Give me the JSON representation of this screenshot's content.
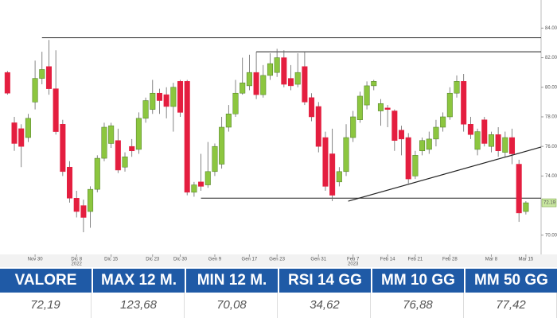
{
  "chart_data": {
    "type": "candlestick",
    "categories": [
      null,
      null,
      null,
      null,
      "Nov 30",
      null,
      null,
      null,
      null,
      null,
      "Dic 8",
      null,
      null,
      null,
      null,
      "Dic 15",
      null,
      null,
      null,
      null,
      null,
      "Dic 23",
      null,
      null,
      null,
      "Dic 30",
      null,
      null,
      null,
      null,
      "Gen 9",
      null,
      null,
      null,
      null,
      "Gen 17",
      null,
      null,
      null,
      "Gen 23",
      null,
      null,
      null,
      null,
      null,
      "Gen 31",
      null,
      null,
      null,
      null,
      "Feb 7",
      null,
      null,
      null,
      null,
      "Feb 14",
      null,
      null,
      null,
      "Feb 21",
      null,
      null,
      null,
      null,
      "Feb 28",
      null,
      null,
      null,
      null,
      null,
      "Mar 8",
      null,
      null,
      null,
      null,
      "Mar 15"
    ],
    "open": [
      81.0,
      77.6,
      77.2,
      76.6,
      79.0,
      80.6,
      81.4,
      79.9,
      77.5,
      74.6,
      72.5,
      72.0,
      71.6,
      73.1,
      75.2,
      76.2,
      76.4,
      74.6,
      76.0,
      75.8,
      77.9,
      78.5,
      79.6,
      79.5,
      78.7,
      80.4,
      80.4,
      72.9,
      73.6,
      73.4,
      74.3,
      74.8,
      77.3,
      78.2,
      79.6,
      80.1,
      81.0,
      79.5,
      80.8,
      81.0,
      82.0,
      80.6,
      80.2,
      81.4,
      79.3,
      78.7,
      76.6,
      75.5,
      73.6,
      74.3,
      76.6,
      77.8,
      78.8,
      80.1,
      78.4,
      78.6,
      78.4,
      77.1,
      76.6,
      74.0,
      75.7,
      75.8,
      76.5,
      77.3,
      78.0,
      79.6,
      80.4,
      77.5,
      75.8,
      77.8,
      76.0,
      76.8,
      75.6,
      76.6,
      74.8,
      71.6
    ],
    "high": [
      81.1,
      78.0,
      77.5,
      78.2,
      81.8,
      82.4,
      83.2,
      82.5,
      77.8,
      75.0,
      73.0,
      72.4,
      73.3,
      75.4,
      77.6,
      77.6,
      77.2,
      75.6,
      76.5,
      78.3,
      79.3,
      80.5,
      79.9,
      80.0,
      80.3,
      80.5,
      80.5,
      73.6,
      75.5,
      76.3,
      76.2,
      78.0,
      78.8,
      80.5,
      82.0,
      82.2,
      82.4,
      81.5,
      82.3,
      82.6,
      82.5,
      81.5,
      82.3,
      82.4,
      79.6,
      79.0,
      77.0,
      77.2,
      74.6,
      77.5,
      78.4,
      79.7,
      80.4,
      80.5,
      79.2,
      78.8,
      78.5,
      77.4,
      76.9,
      75.7,
      76.6,
      77.0,
      77.8,
      78.3,
      80.0,
      80.8,
      80.9,
      78.0,
      77.2,
      78.0,
      77.0,
      77.3,
      77.0,
      77.2,
      75.1,
      72.3
    ],
    "low": [
      79.5,
      75.7,
      74.6,
      76.3,
      78.5,
      80.2,
      79.5,
      76.8,
      74.0,
      72.2,
      71.2,
      70.2,
      70.5,
      72.9,
      75.0,
      75.9,
      74.2,
      74.3,
      75.3,
      75.5,
      77.6,
      78.2,
      78.2,
      77.9,
      77.0,
      78.0,
      72.7,
      72.6,
      73.0,
      73.2,
      74.0,
      74.5,
      77.0,
      78.0,
      79.5,
      79.8,
      79.2,
      79.3,
      80.5,
      80.7,
      80.0,
      79.8,
      80.0,
      78.8,
      77.7,
      75.6,
      73.0,
      72.3,
      73.3,
      74.0,
      76.3,
      77.6,
      78.5,
      79.8,
      77.4,
      77.3,
      75.7,
      75.4,
      73.5,
      73.8,
      75.4,
      75.5,
      76.0,
      77.0,
      77.8,
      79.3,
      77.0,
      76.5,
      75.4,
      76.0,
      75.6,
      75.3,
      75.3,
      74.8,
      70.9,
      71.4
    ],
    "close": [
      79.6,
      76.2,
      76.0,
      77.9,
      80.6,
      81.2,
      79.9,
      77.0,
      74.3,
      72.5,
      71.6,
      71.2,
      73.1,
      75.2,
      77.3,
      77.4,
      74.4,
      75.3,
      75.7,
      77.9,
      79.1,
      79.6,
      79.1,
      78.7,
      80.0,
      78.3,
      72.9,
      73.4,
      73.3,
      74.3,
      76.0,
      77.3,
      78.2,
      79.6,
      80.3,
      81.0,
      79.5,
      80.8,
      81.6,
      82.0,
      80.2,
      80.1,
      81.0,
      79.0,
      78.0,
      76.0,
      73.3,
      72.7,
      74.3,
      76.6,
      78.0,
      79.4,
      80.1,
      80.4,
      78.9,
      78.5,
      76.4,
      76.5,
      73.8,
      75.4,
      76.4,
      76.5,
      77.3,
      78.0,
      79.6,
      80.4,
      77.5,
      76.8,
      77.0,
      76.2,
      76.8,
      75.7,
      76.6,
      75.5,
      71.5,
      72.19
    ],
    "up_color": "#8cc63f",
    "down_color": "#e41e3f",
    "ylim": [
      68.7,
      85.9
    ],
    "xlim": [
      -0.5,
      77.2
    ],
    "yticks": [
      {
        "value": 70,
        "label": "70.00"
      },
      {
        "value": 74,
        "label": "74.00"
      },
      {
        "value": 76,
        "label": "76.00"
      },
      {
        "value": 78,
        "label": "78.00"
      },
      {
        "value": 80,
        "label": "80.00"
      },
      {
        "value": 82,
        "label": "82.00"
      },
      {
        "value": 84,
        "label": "84.00"
      }
    ],
    "years": [
      {
        "category": 10,
        "label": "2022"
      },
      {
        "category": 50,
        "label": "2023"
      }
    ],
    "last_price": {
      "value": 72.19,
      "label": "72.19"
    },
    "hlines": [
      {
        "x": 5,
        "y": 83.35
      },
      {
        "x": 36,
        "y": 82.4
      },
      {
        "x": 28,
        "y": 72.5
      }
    ],
    "trendline": {
      "x": [
        49.3,
        77.2
      ],
      "y": [
        72.3,
        75.96
      ]
    }
  },
  "table": {
    "header": [
      "VALORE",
      "MAX 12 M.",
      "MIN 12 M.",
      "RSI 14 GG",
      "MM 10 GG",
      "MM 50 GG"
    ],
    "values": [
      "72,19",
      "123,68",
      "70,08",
      "34,62",
      "76,88",
      "77,42"
    ]
  }
}
